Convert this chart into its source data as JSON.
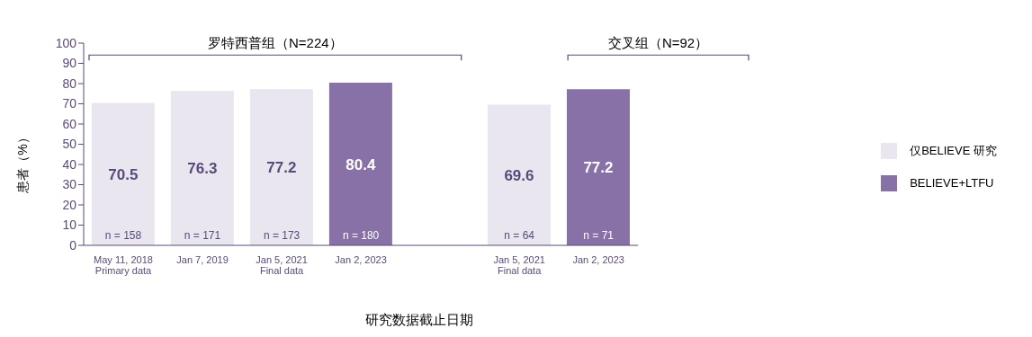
{
  "chart_data": {
    "type": "bar",
    "stacked": true,
    "categories": [
      "May 11, 2018\nPrimary data",
      "Jan 7, 2019",
      "Jan 5, 2021\nFinal data",
      "Jan 2, 2023",
      null,
      "Jan 5, 2021\nFinal data",
      "Jan 2, 2023"
    ],
    "series": [
      {
        "name": "仅BELIEVE 研究",
        "color": "#e9e6ef",
        "values": [
          70.5,
          76.3,
          77.2,
          null,
          null,
          69.6,
          null
        ]
      },
      {
        "name": "BELIEVE+LTFU",
        "color": "#8771a6",
        "values": [
          null,
          null,
          null,
          80.4,
          null,
          null,
          77.2
        ]
      }
    ],
    "data_labels": true,
    "xlabel": "研究数据截止日期",
    "ylabel": "患者（%）",
    "ylim": [
      0,
      100
    ],
    "yticks": [
      0,
      10,
      20,
      30,
      40,
      50,
      60,
      70,
      80,
      90,
      100
    ],
    "grid": false,
    "legend": "right",
    "annotations": [
      "罗特西普组（N=224）",
      "交叉组（N=92）",
      "n = 158",
      "n = 171",
      "n = 173",
      "n = 180",
      "n = 64",
      "n = 71"
    ]
  }
}
